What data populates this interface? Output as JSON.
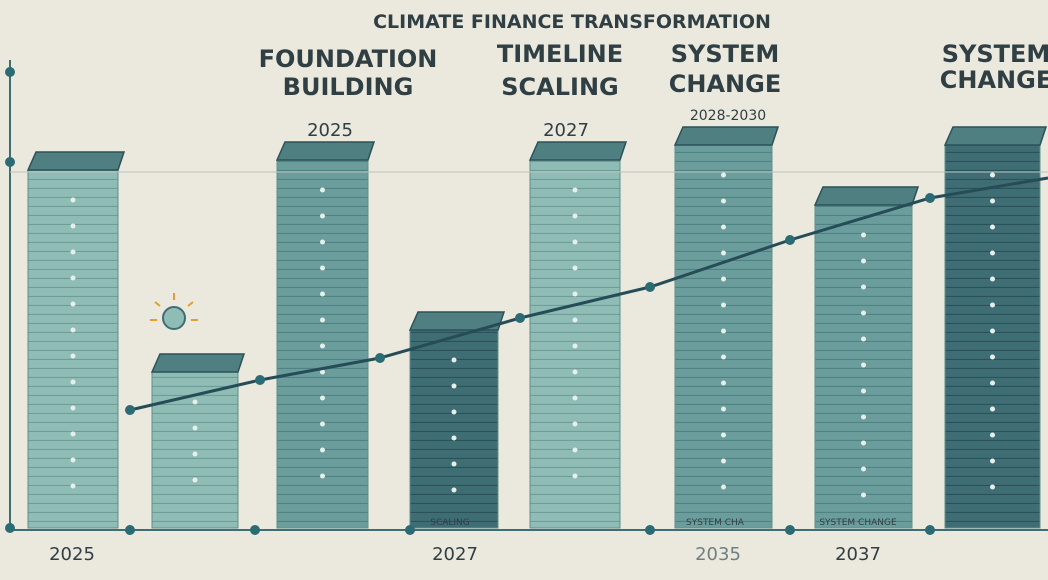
{
  "header": {
    "title": "CLIMATE FINANCE TRANSFORMATION"
  },
  "phases": [
    {
      "lines": [
        "FOUNDATION",
        "BUILDING"
      ]
    },
    {
      "lines": [
        "TIMELINE",
        "SCALING"
      ]
    },
    {
      "lines": [
        "SYSTEM",
        "CHANGE"
      ]
    },
    {
      "lines": [
        "SYSTEM",
        "CHANGE"
      ]
    }
  ],
  "upper_years": [
    "2025",
    "2027",
    "2028-2030"
  ],
  "bottom_years": [
    "2025",
    "2027",
    "2035",
    "2037"
  ],
  "bottom_notes": [
    "SCALING",
    "SYSTEM CHA",
    "SYSTEM CHANGE"
  ]
}
